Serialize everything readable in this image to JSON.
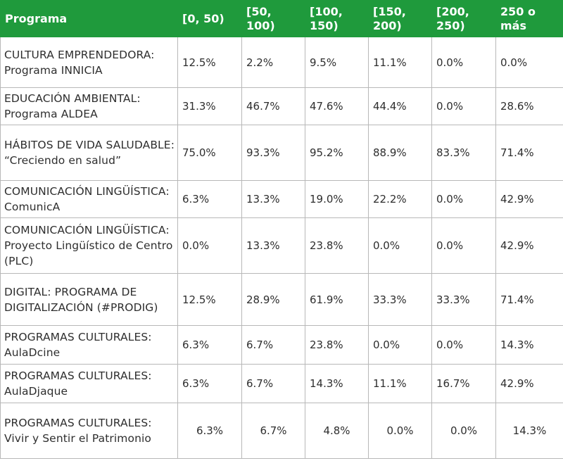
{
  "table": {
    "headers": [
      "Programa",
      "[0, 50)",
      "[50, 100)",
      "[100, 150)",
      "[150, 200)",
      "[200, 250)",
      "250 o más"
    ],
    "rows": [
      {
        "programa": "CULTURA EMPRENDEDORA: Programa INNICIA",
        "values": [
          "12.5%",
          "2.2%",
          "9.5%",
          "11.1%",
          "0.0%",
          "0.0%"
        ]
      },
      {
        "programa": "EDUCACIÓN AMBIENTAL: Programa ALDEA",
        "values": [
          "31.3%",
          "46.7%",
          "47.6%",
          "44.4%",
          "0.0%",
          "28.6%"
        ]
      },
      {
        "programa": "HÁBITOS DE VIDA SALUDABLE: “Creciendo en salud”",
        "values": [
          "75.0%",
          "93.3%",
          "95.2%",
          "88.9%",
          "83.3%",
          "71.4%"
        ]
      },
      {
        "programa": "COMUNICACIÓN LINGÜÍSTICA: ComunicA",
        "values": [
          "6.3%",
          "13.3%",
          "19.0%",
          "22.2%",
          "0.0%",
          "42.9%"
        ]
      },
      {
        "programa": "COMUNICACIÓN LINGÜÍSTICA: Proyecto Lingüístico de Centro (PLC)",
        "values": [
          "0.0%",
          "13.3%",
          "23.8%",
          "0.0%",
          "0.0%",
          "42.9%"
        ]
      },
      {
        "programa": "DIGITAL: PROGRAMA DE DIGITALIZACIÓN (#PRODIG)",
        "values": [
          "12.5%",
          "28.9%",
          "61.9%",
          "33.3%",
          "33.3%",
          "71.4%"
        ]
      },
      {
        "programa": "PROGRAMAS CULTURALES: AulaDcine",
        "values": [
          "6.3%",
          "6.7%",
          "23.8%",
          "0.0%",
          "0.0%",
          "14.3%"
        ]
      },
      {
        "programa": "PROGRAMAS CULTURALES: AulaDjaque",
        "values": [
          "6.3%",
          "6.7%",
          "14.3%",
          "11.1%",
          "16.7%",
          "42.9%"
        ]
      },
      {
        "programa": "PROGRAMAS CULTURALES: Vivir y Sentir el Patrimonio",
        "values": [
          "6.3%",
          "6.7%",
          "4.8%",
          "0.0%",
          "0.0%",
          "14.3%"
        ]
      }
    ]
  },
  "colors": {
    "header_background": "#1f9a3c",
    "header_text": "#ffffff",
    "grid_lines": "#b8b8b8",
    "body_text": "#2e2e2e"
  }
}
